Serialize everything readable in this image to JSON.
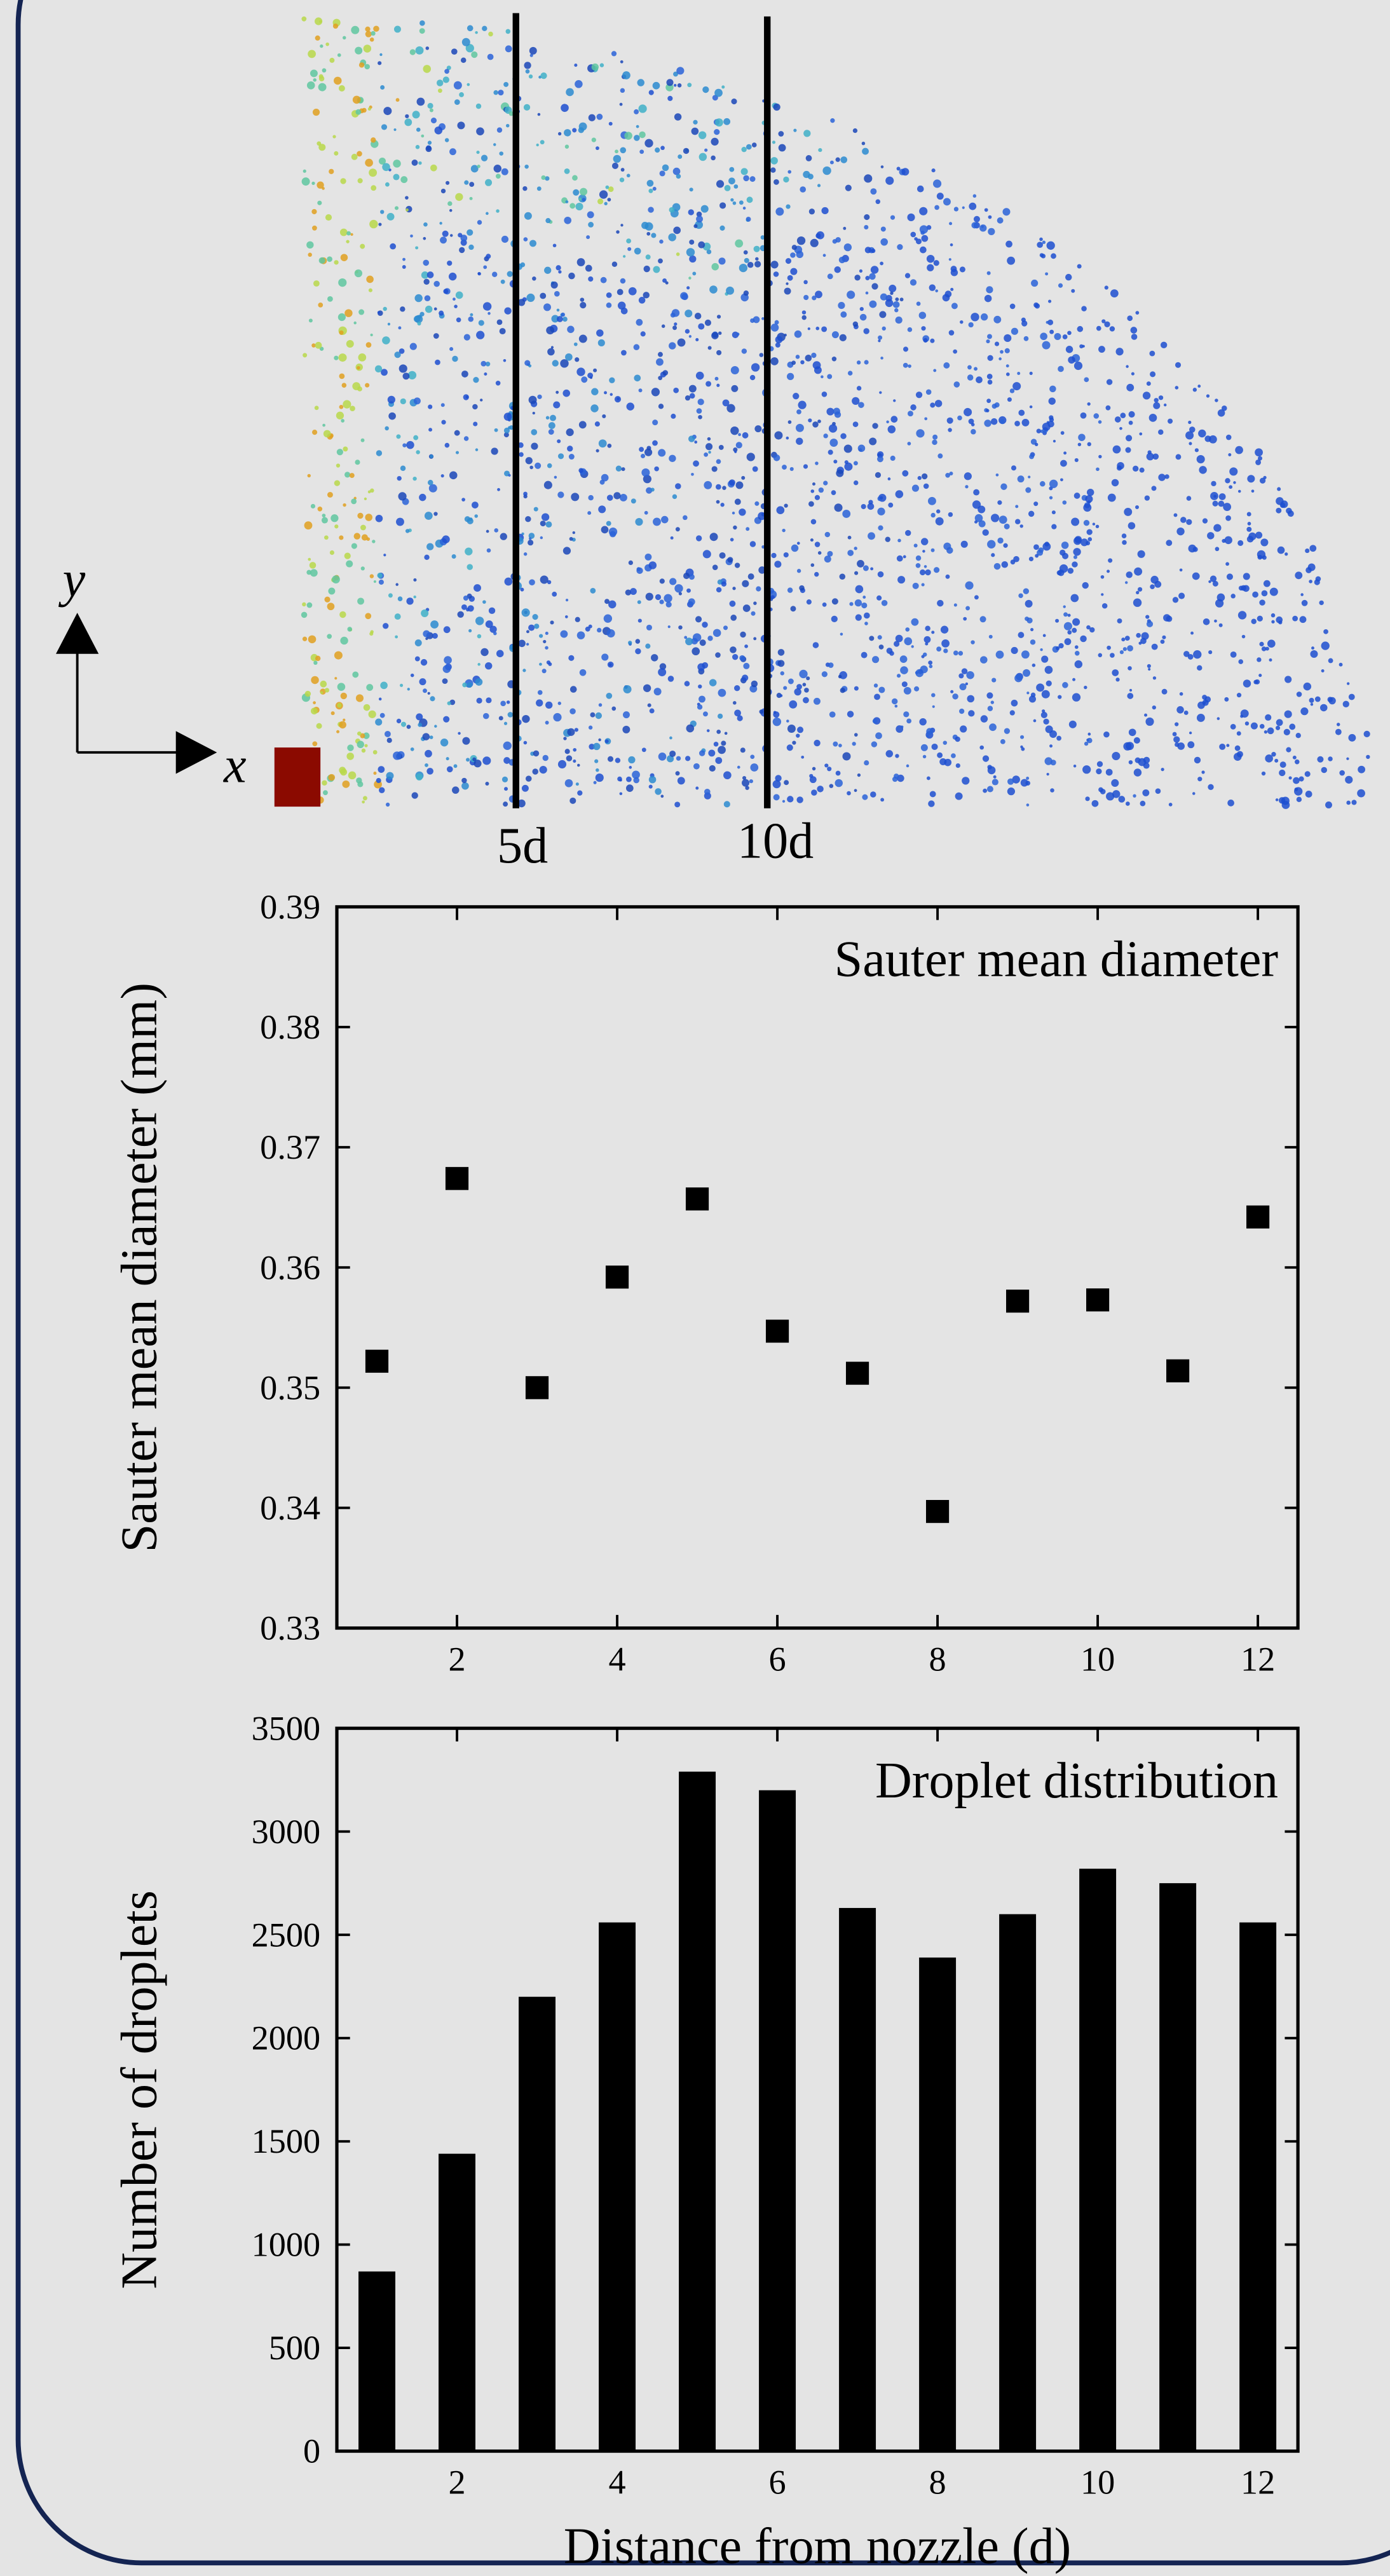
{
  "figure_labels": {
    "y_arrow": "y",
    "x_arrow": "x",
    "line_5d": "5d",
    "line_10d": "10d"
  },
  "chart_data": [
    {
      "type": "scatter",
      "annotation": "Sauter mean diameter",
      "y_label": "Sauter mean diameter (mm)",
      "x": [
        1,
        2,
        3,
        4,
        5,
        6,
        7,
        8,
        9,
        10,
        11,
        12
      ],
      "values": [
        0.3522,
        0.3674,
        0.35,
        0.3592,
        0.3657,
        0.3547,
        0.3512,
        0.3397,
        0.3572,
        0.3573,
        0.3514,
        0.3642
      ],
      "color": "#000000",
      "xlim": [
        0.5,
        12.5
      ],
      "xticks": [
        2,
        4,
        6,
        8,
        10,
        12
      ],
      "ylim": [
        0.33,
        0.39
      ],
      "yticks": [
        0.33,
        0.34,
        0.35,
        0.36,
        0.37,
        0.38,
        0.39
      ]
    },
    {
      "type": "bar",
      "annotation": "Droplet distribution",
      "y_label": "Number of droplets",
      "x_label": "Distance from nozzle (d)",
      "x": [
        1,
        2,
        3,
        4,
        5,
        6,
        7,
        8,
        9,
        10,
        11,
        12
      ],
      "values": [
        870,
        1440,
        2200,
        2560,
        3290,
        3200,
        2630,
        2390,
        2600,
        2820,
        2750,
        2560
      ],
      "color": "#000000",
      "xlim": [
        0.5,
        12.5
      ],
      "xticks": [
        2,
        4,
        6,
        8,
        10,
        12
      ],
      "ylim": [
        0,
        3500
      ],
      "yticks": [
        0,
        500,
        1000,
        1500,
        2000,
        2500,
        3000,
        3500
      ]
    }
  ]
}
